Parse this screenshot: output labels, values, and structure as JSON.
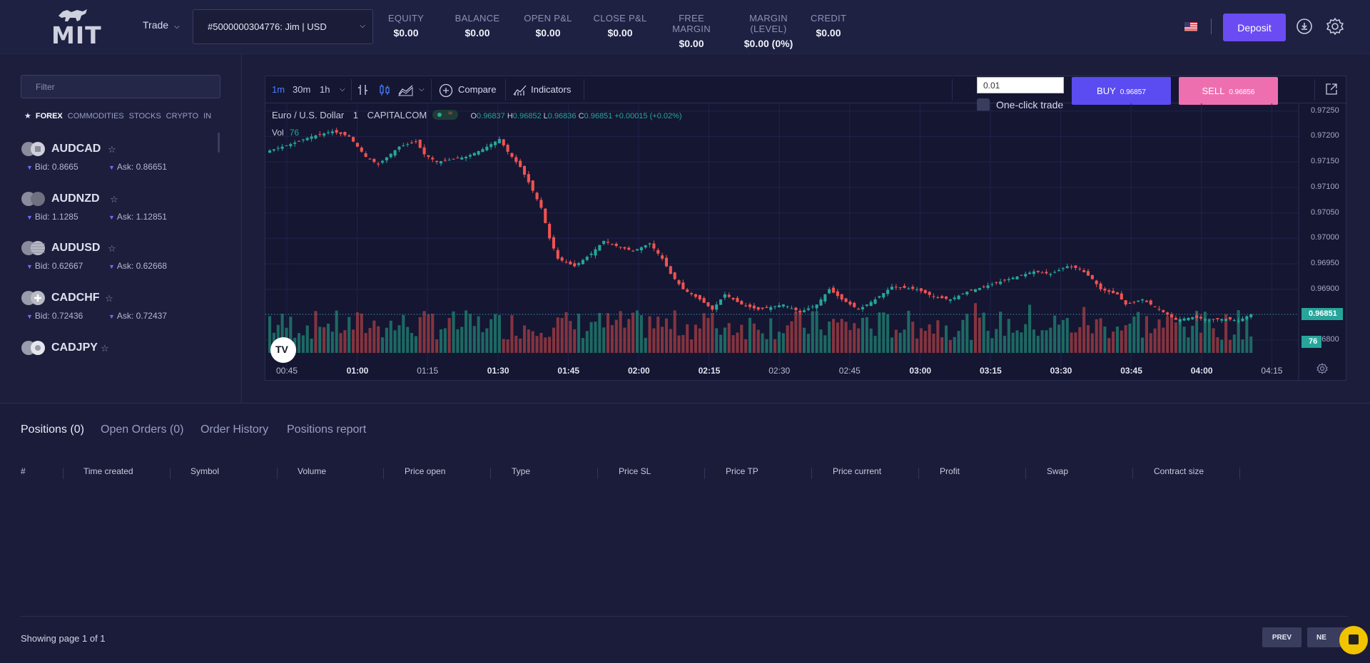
{
  "header": {
    "logo_text": "MIT",
    "trade_menu_label": "Trade",
    "account_label": "#5000000304776: Jim | USD",
    "stats": [
      {
        "label": "EQUITY",
        "value": "$0.00"
      },
      {
        "label": "BALANCE",
        "value": "$0.00"
      },
      {
        "label": "OPEN P&L",
        "value": "$0.00"
      },
      {
        "label": "CLOSE P&L",
        "value": "$0.00"
      },
      {
        "label": "FREE MARGIN",
        "value": "$0.00"
      },
      {
        "label": "MARGIN (LEVEL)",
        "value": "$0.00 (0%)"
      },
      {
        "label": "CREDIT",
        "value": "$0.00"
      }
    ],
    "deposit_label": "Deposit",
    "icons": [
      "us-flag-icon",
      "user-icon",
      "gear-icon"
    ]
  },
  "sidebar": {
    "filter_placeholder": "Filter",
    "categories": [
      "FOREX",
      "COMMODITIES",
      "STOCKS",
      "CRYPTO",
      "IN"
    ],
    "active_category": "FOREX",
    "symbols": [
      {
        "name": "AUDCAD",
        "bid": "Bid: 0.8665",
        "ask": "Ask: 0.86651"
      },
      {
        "name": "AUDNZD",
        "bid": "Bid: 1.1285",
        "ask": "Ask: 1.12851"
      },
      {
        "name": "AUDUSD",
        "bid": "Bid: 0.62667",
        "ask": "Ask: 0.62668"
      },
      {
        "name": "CADCHF",
        "bid": "Bid: 0.72436",
        "ask": "Ask: 0.72437"
      },
      {
        "name": "CADJPY",
        "bid": "",
        "ask": ""
      }
    ]
  },
  "chart_toolbar": {
    "timeframes": [
      "1m",
      "30m",
      "1h"
    ],
    "active_timeframe": "1m",
    "compare_label": "Compare",
    "indicators_label": "Indicators",
    "quantity_value": "0.01",
    "one_click_label": "One-click trade",
    "buy_label": "BUY",
    "buy_price": "0.96857",
    "sell_label": "SELL",
    "sell_price": "0.96856"
  },
  "chart_legend": {
    "symbol_name": "Euro / U.S. Dollar",
    "interval": "1",
    "source": "CAPITALCOM",
    "open_label": "O",
    "open": "0.96837",
    "high_label": "H",
    "high": "0.96852",
    "low_label": "L",
    "low": "0.96836",
    "close_label": "C",
    "close": "0.96851",
    "change": "+0.00015 (+0.02%)",
    "vol_label": "Vol",
    "vol_value": "76",
    "last_price_tag": "0.96851",
    "volume_tag": "76",
    "colors": {
      "up": "#26a69a",
      "down": "#ef5350"
    }
  },
  "chart_data": {
    "type": "candlestick",
    "symbol": "EURUSD",
    "interval": "1",
    "y_ticks": [
      "0.97250",
      "0.97200",
      "0.97150",
      "0.97100",
      "0.97050",
      "0.97000",
      "0.96950",
      "0.96900",
      "0.96850",
      "0.96800"
    ],
    "ylim": [
      0.96775,
      0.97265
    ],
    "x_ticks": [
      "00:45",
      "01:00",
      "01:15",
      "01:30",
      "01:45",
      "02:00",
      "02:15",
      "02:30",
      "02:45",
      "03:00",
      "03:15",
      "03:30",
      "03:45",
      "04:00",
      "04:15"
    ],
    "major_x_ticks": [
      "01:00",
      "01:30",
      "01:45",
      "02:00",
      "02:15",
      "03:00",
      "03:15",
      "03:30",
      "03:45",
      "04:00"
    ],
    "close_path": [
      [
        0,
        0.9717
      ],
      [
        6,
        0.97185
      ],
      [
        11,
        0.972
      ],
      [
        16,
        0.9721
      ],
      [
        20,
        0.972
      ],
      [
        24,
        0.9716
      ],
      [
        27,
        0.97145
      ],
      [
        32,
        0.9718
      ],
      [
        36,
        0.9719
      ],
      [
        38,
        0.97165
      ],
      [
        41,
        0.9715
      ],
      [
        48,
        0.9716
      ],
      [
        52,
        0.97175
      ],
      [
        56,
        0.97195
      ],
      [
        58,
        0.9717
      ],
      [
        61,
        0.9714
      ],
      [
        63,
        0.9711
      ],
      [
        66,
        0.9706
      ],
      [
        68,
        0.97
      ],
      [
        70,
        0.9696
      ],
      [
        74,
        0.96945
      ],
      [
        78,
        0.9697
      ],
      [
        81,
        0.96995
      ],
      [
        84,
        0.96985
      ],
      [
        88,
        0.96975
      ],
      [
        92,
        0.9699
      ],
      [
        95,
        0.9696
      ],
      [
        97,
        0.9693
      ],
      [
        100,
        0.969
      ],
      [
        104,
        0.9688
      ],
      [
        107,
        0.9686
      ],
      [
        110,
        0.9689
      ],
      [
        114,
        0.9687
      ],
      [
        118,
        0.9686
      ],
      [
        124,
        0.9687
      ],
      [
        128,
        0.96855
      ],
      [
        132,
        0.9687
      ],
      [
        135,
        0.969
      ],
      [
        138,
        0.9688
      ],
      [
        142,
        0.9686
      ],
      [
        146,
        0.9688
      ],
      [
        150,
        0.96905
      ],
      [
        156,
        0.969
      ],
      [
        160,
        0.96885
      ],
      [
        164,
        0.9688
      ],
      [
        168,
        0.96895
      ],
      [
        172,
        0.96905
      ],
      [
        176,
        0.96915
      ],
      [
        180,
        0.96925
      ],
      [
        184,
        0.96935
      ],
      [
        188,
        0.9693
      ],
      [
        192,
        0.96945
      ],
      [
        195,
        0.9694
      ],
      [
        198,
        0.9692
      ],
      [
        200,
        0.969
      ],
      [
        204,
        0.9689
      ],
      [
        206,
        0.9687
      ],
      [
        210,
        0.9688
      ],
      [
        214,
        0.9686
      ],
      [
        218,
        0.9684
      ],
      [
        222,
        0.96845
      ],
      [
        226,
        0.9684
      ],
      [
        230,
        0.96842
      ],
      [
        233,
        0.96838
      ],
      [
        236,
        0.96851
      ]
    ],
    "volume_series_length": 236
  },
  "positions": {
    "tabs": [
      "Positions (0)",
      "Open Orders (0)",
      "Order History",
      "Positions report"
    ],
    "active_tab": "Positions (0)",
    "columns": [
      "#",
      "Time created",
      "Symbol",
      "Volume",
      "Price open",
      "Type",
      "Price SL",
      "Price TP",
      "Price current",
      "Profit",
      "Swap",
      "Contract size"
    ],
    "rows": [],
    "pagination_text": "Showing page 1 of 1",
    "prev_label": "PREV",
    "next_label": "NE"
  }
}
